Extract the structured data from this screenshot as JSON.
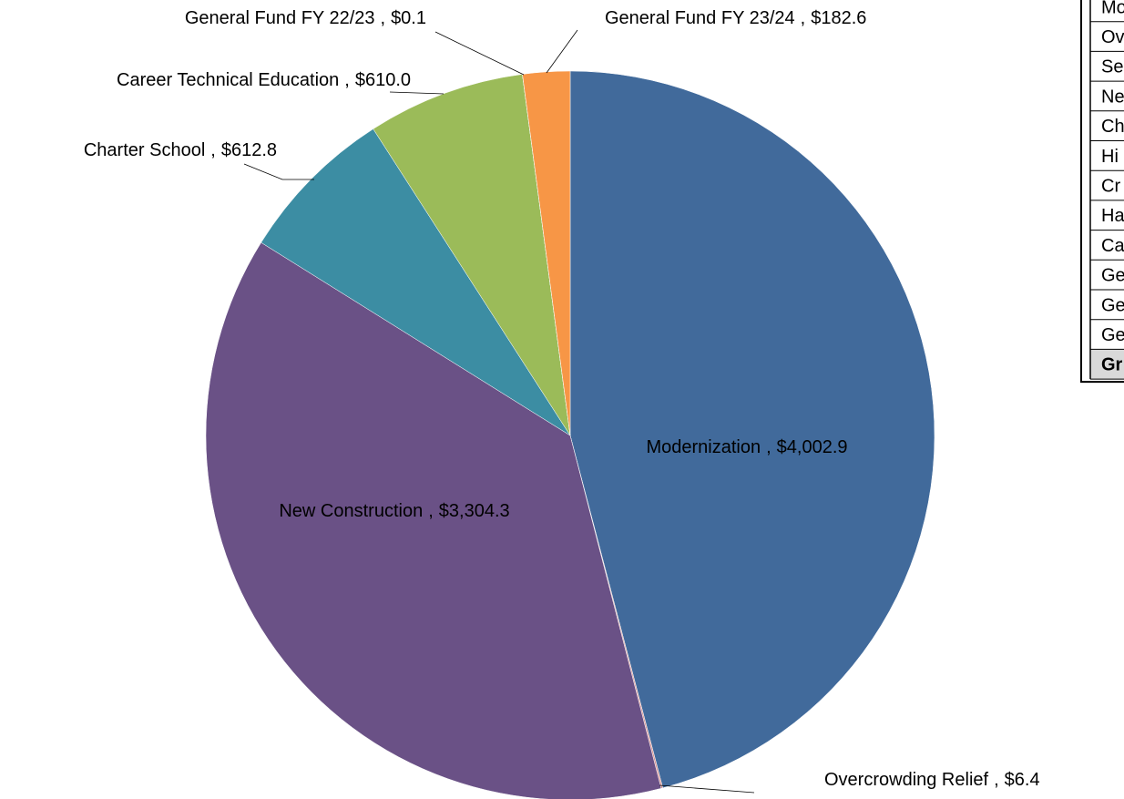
{
  "chart_data": {
    "type": "pie",
    "categories": [
      "Modernization",
      "Overcrowding Relief",
      "New Construction",
      "Charter School",
      "Career Technical Education",
      "General Fund FY 22/23",
      "General Fund FY 23/24"
    ],
    "values": [
      4002.9,
      6.4,
      3304.3,
      612.8,
      610.0,
      0.1,
      182.6
    ],
    "value_labels": [
      "$4,002.9",
      "$6.4",
      "$3,304.3",
      "$612.8",
      "$610.0",
      "$0.1",
      "$182.6"
    ],
    "label_separator": ",",
    "colors": [
      "#416a9b",
      "#d99694",
      "#6a5186",
      "#3c8da3",
      "#9bbb59",
      "#4f81bd",
      "#f79646"
    ]
  },
  "table": {
    "rows": [
      "Mo",
      "Ov",
      "Se",
      "Ne",
      "Ch",
      "Hi",
      "Cr",
      "Ha",
      "Ca",
      "Ge",
      "Ge",
      "Ge",
      "Gr"
    ]
  }
}
